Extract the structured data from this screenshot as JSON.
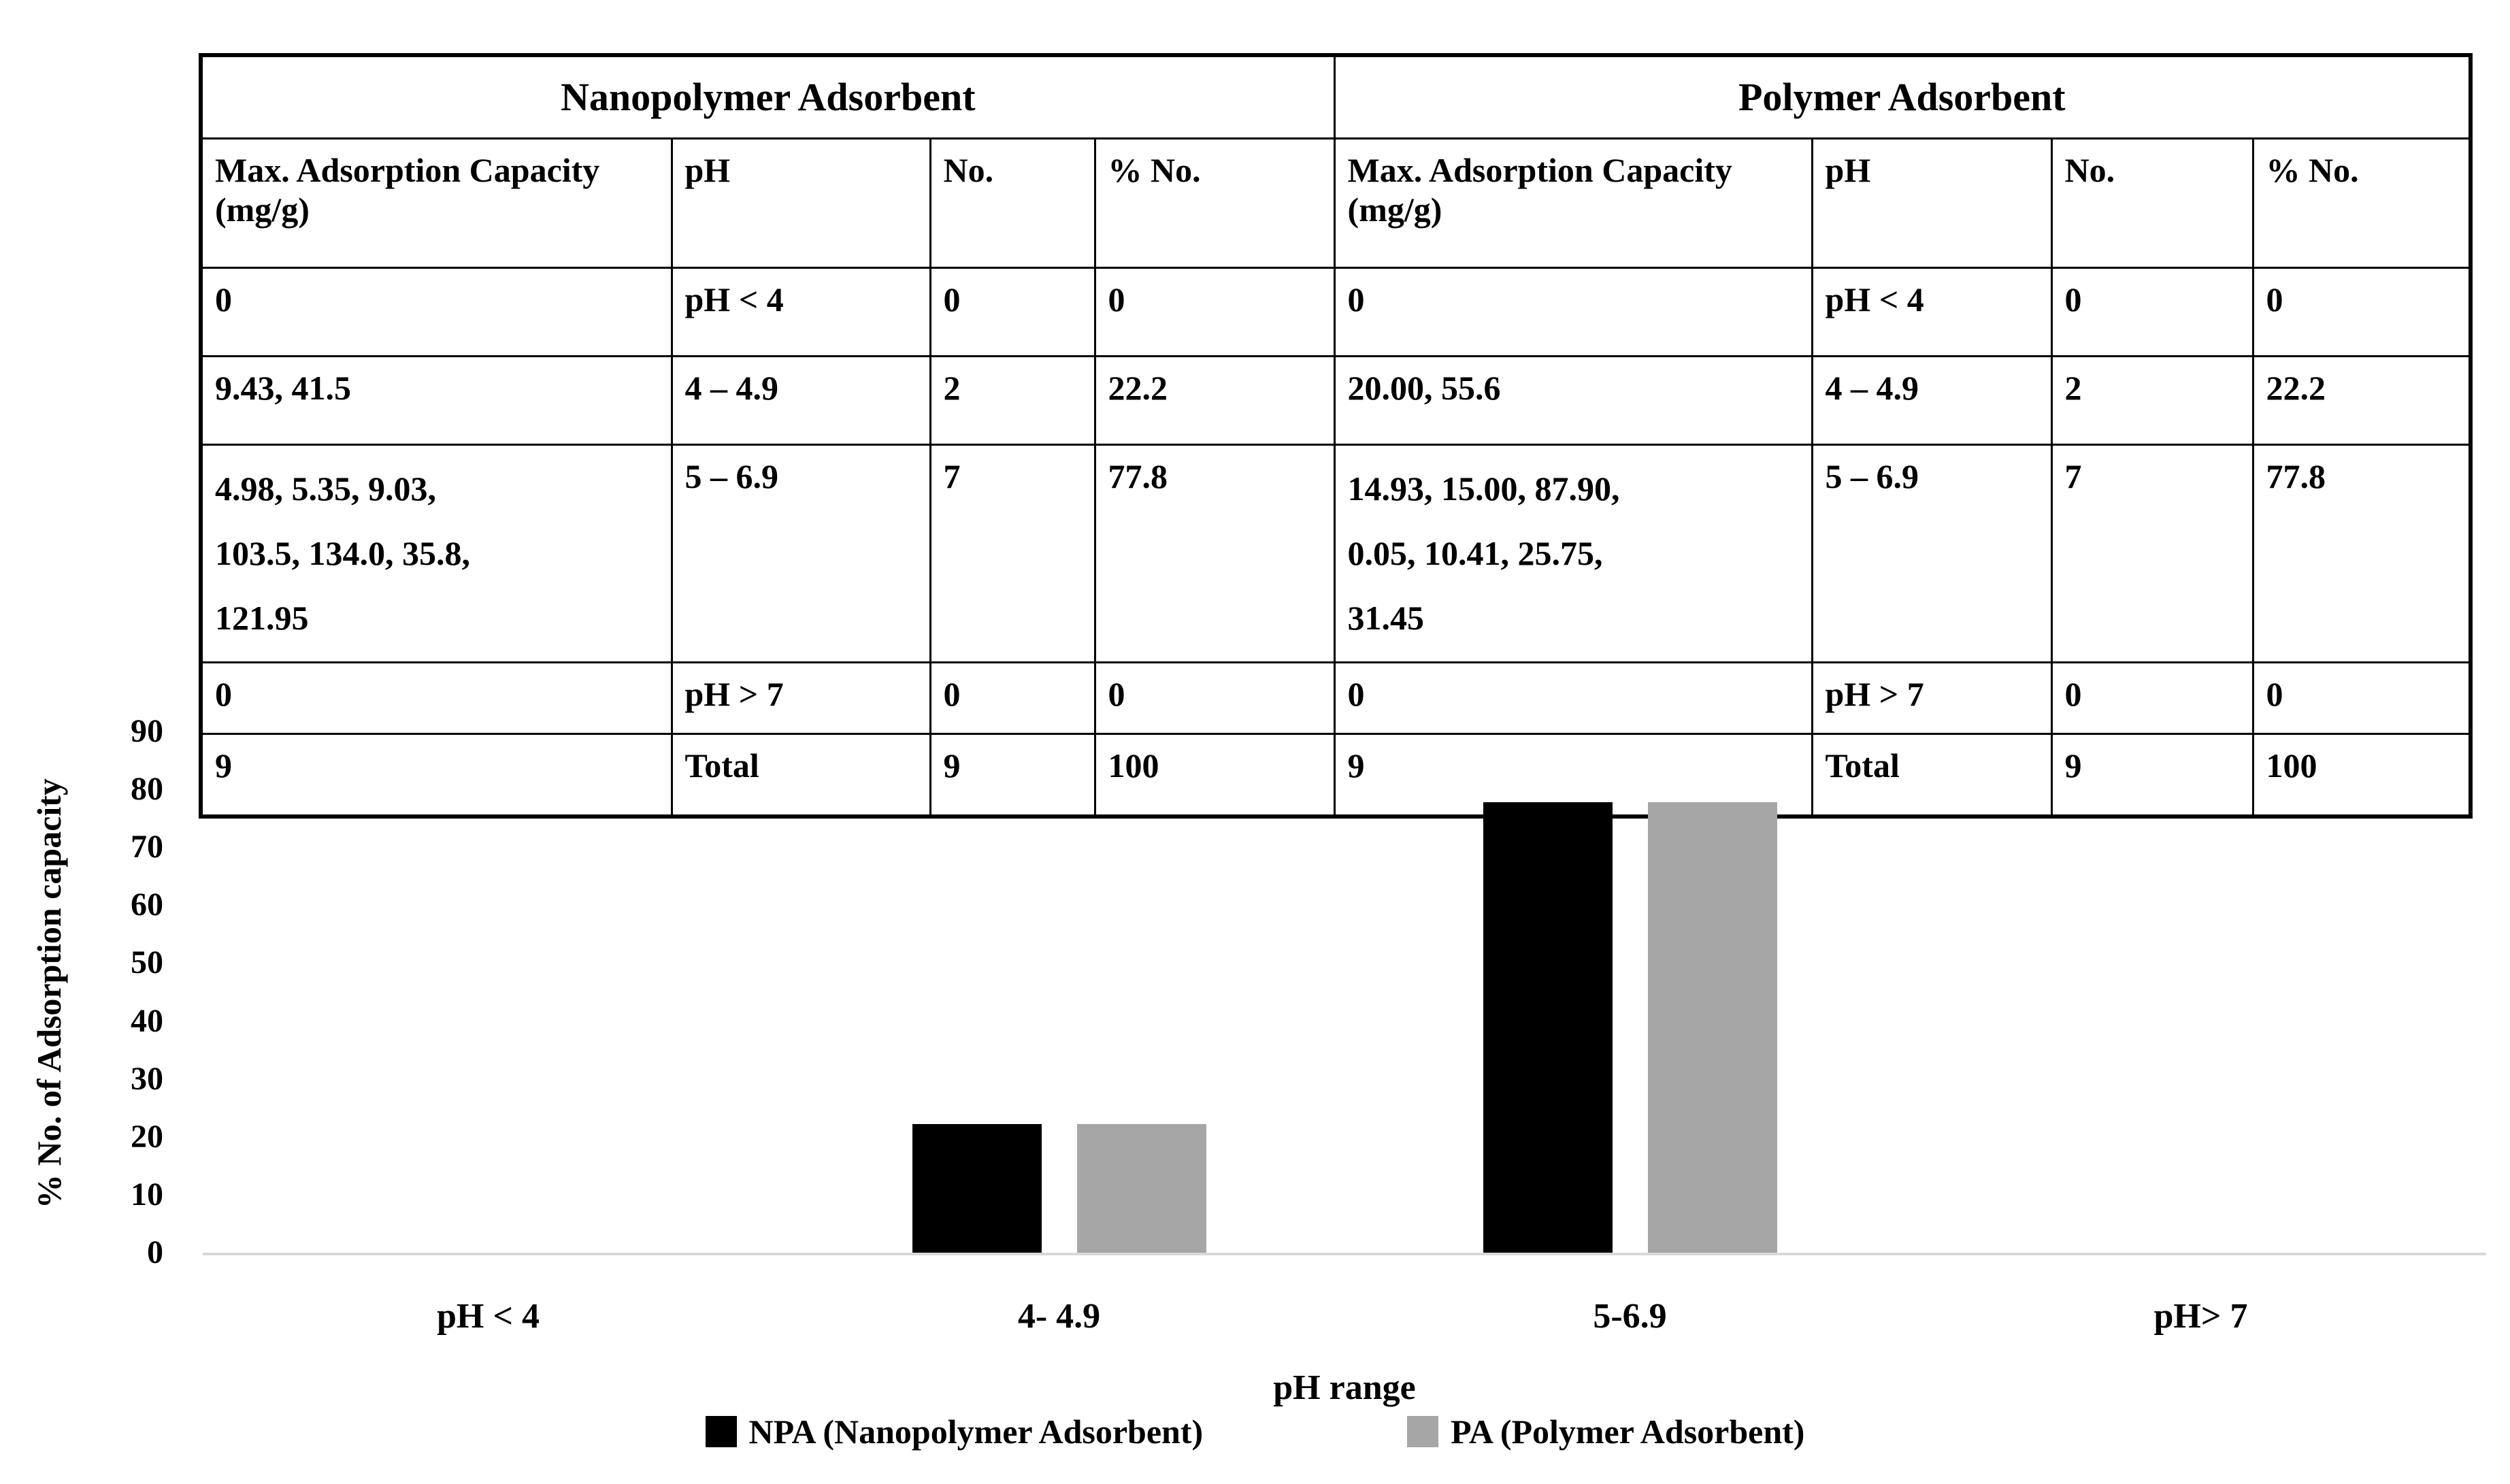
{
  "table": {
    "groups": [
      {
        "title": "Nanopolymer Adsorbent",
        "columns": [
          "Max. Adsorption Capacity (mg/g)",
          "pH",
          "No.",
          "% No."
        ],
        "rows": [
          [
            "0",
            "pH < 4",
            "0",
            "0"
          ],
          [
            "9.43, 41.5",
            "4 – 4.9",
            "2",
            "22.2"
          ],
          [
            "4.98, 5.35, 9.03,\n103.5, 134.0, 35.8,\n121.95",
            "5 – 6.9",
            "7",
            "77.8"
          ],
          [
            "0",
            "pH > 7",
            "0",
            "0"
          ],
          [
            "9",
            "Total",
            "9",
            "100"
          ]
        ]
      },
      {
        "title": "Polymer Adsorbent",
        "columns": [
          "Max. Adsorption Capacity (mg/g)",
          "pH",
          "No.",
          "% No."
        ],
        "rows": [
          [
            "0",
            "pH < 4",
            "0",
            "0"
          ],
          [
            "20.00, 55.6",
            "4 – 4.9",
            "2",
            "22.2"
          ],
          [
            "14.93, 15.00, 87.90,\n0.05, 10.41, 25.75,\n31.45",
            "5 – 6.9",
            "7",
            "77.8"
          ],
          [
            "0",
            "pH > 7",
            "0",
            "0"
          ],
          [
            "9",
            "Total",
            "9",
            "100"
          ]
        ]
      }
    ]
  },
  "chart_data": {
    "type": "bar",
    "categories": [
      "pH < 4",
      "4- 4.9",
      "5-6.9",
      "pH> 7"
    ],
    "series": [
      {
        "name": "NPA (Nanopolymer Adsorbent)",
        "color": "#000000",
        "values": [
          0,
          22.2,
          77.8,
          0
        ]
      },
      {
        "name": "PA (Polymer Adsorbent)",
        "color": "#a6a6a6",
        "values": [
          0,
          22.2,
          77.8,
          0
        ]
      }
    ],
    "title": "",
    "xlabel": "pH range",
    "ylabel": "% No. of Adsorption capacity",
    "ylim": [
      0,
      90
    ],
    "yticks": [
      "90",
      "80",
      "70",
      "60",
      "50",
      "40",
      "30",
      "20",
      "10",
      "0"
    ],
    "grid": false,
    "legend_position": "bottom",
    "axis_line_color": "#d9d9d9"
  }
}
